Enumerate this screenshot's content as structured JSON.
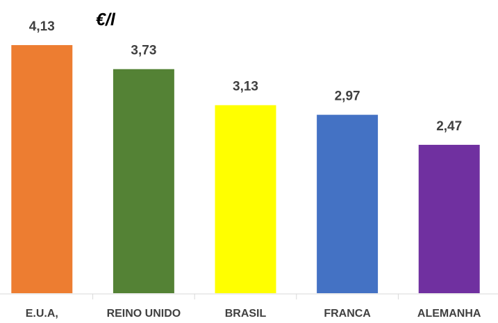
{
  "chart_data": {
    "type": "bar",
    "unit": "€/l",
    "categories": [
      "E.U.A,",
      "REINO UNIDO",
      "BRASIL",
      "FRANCA",
      "ALEMANHA"
    ],
    "values": [
      4.13,
      3.73,
      3.13,
      2.97,
      2.47
    ],
    "value_labels": [
      "4,13",
      "3,73",
      "3,13",
      "2,97",
      "2,47"
    ],
    "colors": [
      "#ed7d31",
      "#548235",
      "#ffff00",
      "#4472c4",
      "#7030a0"
    ],
    "ylim": [
      0,
      4.8
    ]
  }
}
